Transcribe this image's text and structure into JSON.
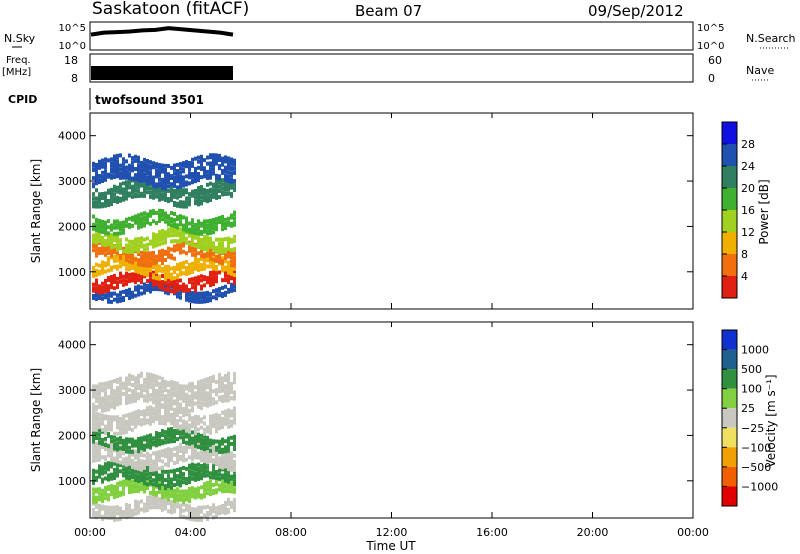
{
  "header": {
    "site": "Saskatoon (fitACF)",
    "beam": "Beam 07",
    "date": "09/Sep/2012"
  },
  "left_labels": {
    "nsky": "N.Sky",
    "freq": "Freq.",
    "freq_unit": "[MHz]",
    "cpid": "CPID"
  },
  "right_labels": {
    "nsearch": "N.Search",
    "nave": "Nave"
  },
  "cpid_name": "twofsound 3501",
  "colors": {
    "power": [
      "#1010e0",
      "#2050b0",
      "#308060",
      "#40b030",
      "#a0d020",
      "#f0b000",
      "#f07010",
      "#e02010"
    ],
    "velocity": [
      "#e00000",
      "#f06000",
      "#f0a000",
      "#f0e060",
      "#c8c8c0",
      "#80d040",
      "#309040",
      "#206090",
      "#1030d0"
    ]
  },
  "chart_data": [
    {
      "type": "line",
      "title": "N.Sky / N.Search",
      "yticks_left": [
        "10^5",
        "10^0"
      ],
      "yticks_right": [
        "10^5",
        "10^0"
      ],
      "x": [
        "00:00",
        "00:30",
        "01:00",
        "01:30",
        "02:00",
        "02:30",
        "03:00",
        "03:30",
        "04:00",
        "04:30",
        "05:00",
        "05:30"
      ],
      "series": [
        {
          "name": "N.Sky",
          "values": [
            0.55,
            0.62,
            0.64,
            0.66,
            0.7,
            0.72,
            0.78,
            0.74,
            0.7,
            0.66,
            0.62,
            0.55
          ]
        }
      ]
    },
    {
      "type": "line",
      "title": "Freq. / Nave",
      "yticks_left": [
        "18",
        "8"
      ],
      "yticks_right": [
        "60",
        "0"
      ],
      "x": [
        "00:00",
        "05:40"
      ],
      "series": [
        {
          "name": "Freq.",
          "values": [
            0.72,
            0.72
          ]
        }
      ]
    },
    {
      "type": "heatmap",
      "title": "Power",
      "ylabel": "Slant Range [km]",
      "yticks": [
        "1000",
        "2000",
        "3000",
        "4000"
      ],
      "colorbar_label": "Power [dB]",
      "colorbar_ticks": [
        "4",
        "8",
        "12",
        "16",
        "20",
        "24",
        "28"
      ],
      "x_range_hours": [
        0,
        24
      ],
      "data_end_hour": 5.7,
      "bands": [
        {
          "start_km": 500,
          "end_km": 700,
          "level": 1
        },
        {
          "start_km": 700,
          "end_km": 1000,
          "level": 7
        },
        {
          "start_km": 1000,
          "end_km": 1300,
          "level": 5
        },
        {
          "start_km": 1300,
          "end_km": 1600,
          "level": 6
        },
        {
          "start_km": 1600,
          "end_km": 1900,
          "level": 4
        },
        {
          "start_km": 2000,
          "end_km": 2300,
          "level": 3
        },
        {
          "start_km": 2600,
          "end_km": 3000,
          "level": 2
        },
        {
          "start_km": 3000,
          "end_km": 3500,
          "level": 1
        }
      ]
    },
    {
      "type": "heatmap",
      "title": "Velocity",
      "ylabel": "Slant Range [km]",
      "yticks": [
        "1000",
        "2000",
        "3000",
        "4000"
      ],
      "colorbar_label": "Velocity [m s⁻¹]",
      "colorbar_ticks": [
        "1000",
        "500",
        "100",
        "25",
        "−25",
        "−100",
        "−500",
        "−1000"
      ],
      "xlabel": "Time UT",
      "xticks": [
        "00:00",
        "04:00",
        "08:00",
        "12:00",
        "16:00",
        "20:00",
        "00:00"
      ],
      "x_range_hours": [
        0,
        24
      ],
      "data_end_hour": 5.7,
      "bands": [
        {
          "start_km": 300,
          "end_km": 600,
          "level": 4
        },
        {
          "start_km": 700,
          "end_km": 1000,
          "level": 5
        },
        {
          "start_km": 1000,
          "end_km": 1400,
          "level": 6
        },
        {
          "start_km": 1400,
          "end_km": 1800,
          "level": 4
        },
        {
          "start_km": 1800,
          "end_km": 2100,
          "level": 6
        },
        {
          "start_km": 2200,
          "end_km": 2600,
          "level": 4
        },
        {
          "start_km": 2700,
          "end_km": 3300,
          "level": 4
        }
      ]
    }
  ]
}
